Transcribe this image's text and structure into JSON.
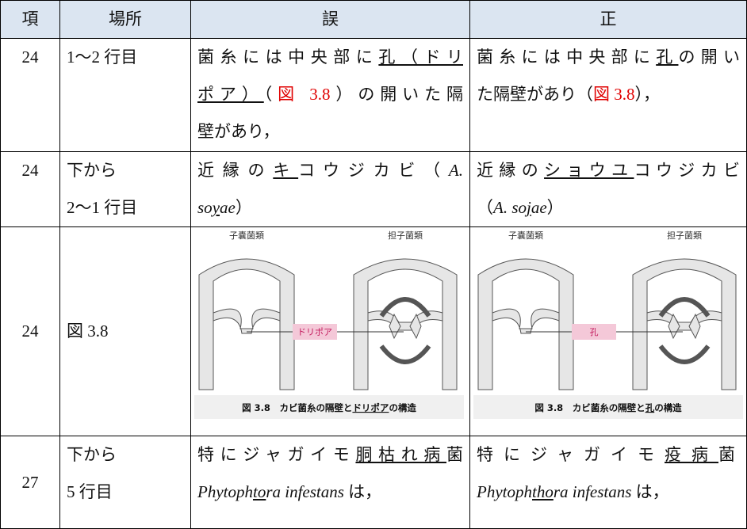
{
  "header": [
    "項",
    "場所",
    "誤",
    "正"
  ],
  "rows": [
    {
      "item": "24",
      "place": [
        [
          "1～2 行目"
        ]
      ],
      "wrong": [
        [
          "菌糸には中央部に",
          "孔（ドリ"
        ],
        [
          "ポア）",
          "（",
          "図 3.8",
          "）の開いた隔"
        ],
        [
          "壁があり，"
        ]
      ],
      "right": [
        [
          "菌糸には中央部に",
          "孔",
          "の開い"
        ],
        [
          "た隔壁があり（",
          "図 3.8",
          "），"
        ]
      ]
    },
    {
      "item": "24",
      "place": [
        [
          "下から"
        ],
        [
          "2～1 行目"
        ]
      ],
      "wrong": [
        [
          "近縁の",
          "キ",
          "コウジカビ（",
          "A."
        ],
        [
          "so",
          "y",
          "ae",
          "）"
        ]
      ],
      "right": [
        [
          "近縁の",
          "ショウユ",
          "コウジカビ"
        ],
        [
          "（",
          "A. so",
          "j",
          "ae",
          "）"
        ]
      ]
    },
    {
      "item": "24",
      "place": [
        [
          "図 3.8"
        ]
      ],
      "wrong": {
        "left_label": "子嚢菌類",
        "right_label": "担子菌類",
        "pore_label": "ドリポア",
        "caption": [
          "図 3.8　カビ菌糸の隔壁と",
          "ドリポア",
          "の構造"
        ]
      },
      "right": {
        "left_label": "子嚢菌類",
        "right_label": "担子菌類",
        "pore_label": "孔",
        "caption": [
          "図 3.8　カビ菌糸の隔壁と",
          "孔",
          "の構造"
        ]
      }
    },
    {
      "item": "27",
      "place": [
        [
          "下から"
        ],
        [
          "5 行目"
        ]
      ],
      "wrong": [
        [
          "特にジャガイモ",
          "胴枯れ病",
          "菌"
        ],
        [
          "Phytoph",
          "to",
          "ra infestans",
          " は，"
        ]
      ],
      "right": [
        [
          "特にジャガイモ",
          "疫病",
          "菌"
        ],
        [
          "Phytoph",
          "tho",
          "ra infestans",
          " は，"
        ]
      ]
    }
  ]
}
